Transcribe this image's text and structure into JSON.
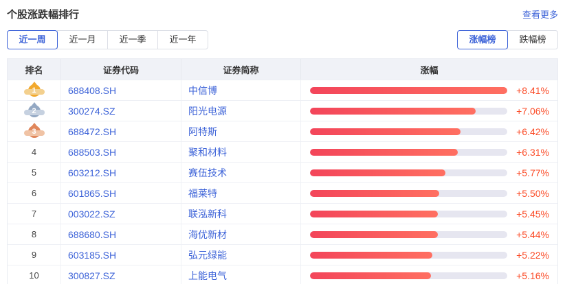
{
  "header": {
    "title": "个股涨跌幅排行",
    "more_link": "查看更多"
  },
  "tabs": [
    {
      "label": "近一周",
      "active": true
    },
    {
      "label": "近一月",
      "active": false
    },
    {
      "label": "近一季",
      "active": false
    },
    {
      "label": "近一年",
      "active": false
    }
  ],
  "toggle": [
    {
      "label": "涨幅榜",
      "active": true
    },
    {
      "label": "跌幅榜",
      "active": false
    }
  ],
  "table": {
    "headers": [
      "排名",
      "证券代码",
      "证券简称",
      "涨幅"
    ],
    "rows": [
      {
        "rank": 1,
        "medal": "gold",
        "code": "688408.SH",
        "name": "中信博",
        "change": "+8.41%",
        "value": 8.41,
        "bar_pct": 100
      },
      {
        "rank": 2,
        "medal": "silver",
        "code": "300274.SZ",
        "name": "阳光电源",
        "change": "+7.06%",
        "value": 7.06,
        "bar_pct": 84
      },
      {
        "rank": 3,
        "medal": "bronze",
        "code": "688472.SH",
        "name": "阿特斯",
        "change": "+6.42%",
        "value": 6.42,
        "bar_pct": 76.3
      },
      {
        "rank": 4,
        "medal": null,
        "code": "688503.SH",
        "name": "聚和材料",
        "change": "+6.31%",
        "value": 6.31,
        "bar_pct": 75
      },
      {
        "rank": 5,
        "medal": null,
        "code": "603212.SH",
        "name": "赛伍技术",
        "change": "+5.77%",
        "value": 5.77,
        "bar_pct": 68.6
      },
      {
        "rank": 6,
        "medal": null,
        "code": "601865.SH",
        "name": "福莱特",
        "change": "+5.50%",
        "value": 5.5,
        "bar_pct": 65.4
      },
      {
        "rank": 7,
        "medal": null,
        "code": "003022.SZ",
        "name": "联泓新科",
        "change": "+5.45%",
        "value": 5.45,
        "bar_pct": 64.8
      },
      {
        "rank": 8,
        "medal": null,
        "code": "688680.SH",
        "name": "海优新材",
        "change": "+5.44%",
        "value": 5.44,
        "bar_pct": 64.7
      },
      {
        "rank": 9,
        "medal": null,
        "code": "603185.SH",
        "name": "弘元绿能",
        "change": "+5.22%",
        "value": 5.22,
        "bar_pct": 62.1
      },
      {
        "rank": 10,
        "medal": null,
        "code": "300827.SZ",
        "name": "上能电气",
        "change": "+5.16%",
        "value": 5.16,
        "bar_pct": 61.4
      }
    ]
  },
  "colors": {
    "accent_blue": "#3d63d8",
    "up_red": "#fb4b27",
    "bar_gradient_start": "#f3455a",
    "bar_gradient_end": "#ff6f61",
    "bar_track": "#e6e6f0",
    "header_bg": "#f0f2f7",
    "medal_gold": "#f2a92d",
    "medal_silver": "#93a8c3",
    "medal_bronze": "#e0875c"
  }
}
